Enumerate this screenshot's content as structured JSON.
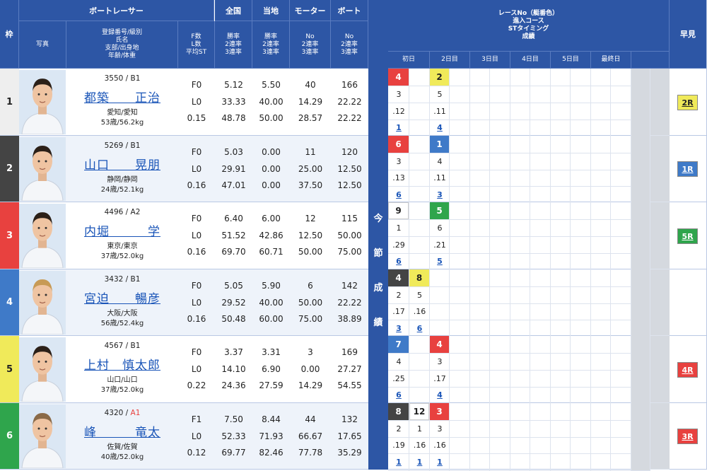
{
  "headers": {
    "waku": "枠",
    "photo": "写真",
    "racer_group": "ボートレーサー",
    "racer_sub": [
      "登録番号/級別",
      "氏名",
      "支部/出身地",
      "年齢/体重"
    ],
    "fl_sub": [
      "F数",
      "L数",
      "平均ST"
    ],
    "zenkoku": "全国",
    "touchi": "当地",
    "motor": "モーター",
    "boat": "ボート",
    "rate_sub": [
      "勝率",
      "2連率",
      "3連率"
    ],
    "no_sub": [
      "No",
      "2連率",
      "3連率"
    ],
    "race_title": [
      "レースNo（艇番色）",
      "進入コース",
      "STタイミング",
      "成績"
    ],
    "days": [
      "初日",
      "2日目",
      "3日目",
      "4日目",
      "5日目",
      "最終日"
    ],
    "early": "早見",
    "side_label": [
      "今",
      "節",
      "成",
      "績"
    ]
  },
  "colors": {
    "header_bg": "#2d56a5",
    "lane1": "#ffffff",
    "lane2": "#444444",
    "lane3": "#e8413f",
    "lane4": "#3f7ac8",
    "lane5": "#f0ea5a",
    "lane6": "#2fa54c"
  },
  "racers": [
    {
      "waku": "1",
      "id_class": "3550 / B1",
      "class_highlight": false,
      "name": "都築　　正治",
      "branch": "愛知/愛知",
      "age_weight": "53歳/56.2kg",
      "f": "F0",
      "l": "L0",
      "st": "0.15",
      "zenkoku": [
        "5.12",
        "33.33",
        "48.78"
      ],
      "touchi": [
        "5.50",
        "40.00",
        "50.00"
      ],
      "motor": [
        "40",
        "14.29",
        "28.57"
      ],
      "boat": [
        "166",
        "22.22",
        "22.22"
      ],
      "races": [
        {
          "day": 0,
          "race": "4",
          "color": "lane3",
          "course": "3",
          "st": ".12",
          "result": "1"
        },
        {
          "day": 1,
          "race": "2",
          "color": "lane5",
          "course": "5",
          "st": ".11",
          "result": "4"
        }
      ],
      "early": "2R",
      "early_color": "lane5"
    },
    {
      "waku": "2",
      "id_class": "5269 / B1",
      "class_highlight": false,
      "name": "山口　　晃朋",
      "branch": "静岡/静岡",
      "age_weight": "24歳/52.1kg",
      "f": "F0",
      "l": "L0",
      "st": "0.16",
      "zenkoku": [
        "5.03",
        "29.91",
        "47.01"
      ],
      "touchi": [
        "0.00",
        "0.00",
        "0.00"
      ],
      "motor": [
        "11",
        "25.00",
        "37.50"
      ],
      "boat": [
        "120",
        "12.50",
        "12.50"
      ],
      "races": [
        {
          "day": 0,
          "race": "6",
          "color": "lane3",
          "course": "3",
          "st": ".13",
          "result": "6"
        },
        {
          "day": 1,
          "race": "1",
          "color": "lane4",
          "course": "4",
          "st": ".11",
          "result": "3"
        }
      ],
      "early": "1R",
      "early_color": "lane4"
    },
    {
      "waku": "3",
      "id_class": "4496 / A2",
      "class_highlight": false,
      "name": "内堀　　　学",
      "branch": "東京/東京",
      "age_weight": "37歳/52.0kg",
      "f": "F0",
      "l": "L0",
      "st": "0.16",
      "zenkoku": [
        "6.40",
        "51.52",
        "69.70"
      ],
      "touchi": [
        "6.00",
        "42.86",
        "60.71"
      ],
      "motor": [
        "12",
        "12.50",
        "50.00"
      ],
      "boat": [
        "115",
        "50.00",
        "75.00"
      ],
      "races": [
        {
          "day": 0,
          "race": "9",
          "color": "lane1",
          "course": "1",
          "st": ".29",
          "result": "6"
        },
        {
          "day": 1,
          "race": "5",
          "color": "lane6",
          "course": "6",
          "st": ".21",
          "result": "5"
        }
      ],
      "early": "5R",
      "early_color": "lane6"
    },
    {
      "waku": "4",
      "id_class": "3432 / B1",
      "class_highlight": false,
      "name": "宮迫　　暢彦",
      "branch": "大阪/大阪",
      "age_weight": "56歳/52.4kg",
      "f": "F0",
      "l": "L0",
      "st": "0.16",
      "zenkoku": [
        "5.05",
        "29.52",
        "50.48"
      ],
      "touchi": [
        "5.90",
        "40.00",
        "60.00"
      ],
      "motor": [
        "6",
        "50.00",
        "75.00"
      ],
      "boat": [
        "142",
        "22.22",
        "38.89"
      ],
      "races": [
        {
          "day": 0,
          "race": "4",
          "color": "lane2",
          "course": "2",
          "st": ".17",
          "result": "3"
        },
        {
          "day": 0.5,
          "race": "8",
          "color": "lane5",
          "course": "5",
          "st": ".16",
          "result": "6"
        }
      ],
      "early": "",
      "early_color": ""
    },
    {
      "waku": "5",
      "id_class": "4567 / B1",
      "class_highlight": false,
      "name": "上村　慎太郎",
      "branch": "山口/山口",
      "age_weight": "37歳/52.0kg",
      "f": "F0",
      "l": "L0",
      "st": "0.22",
      "zenkoku": [
        "3.37",
        "14.10",
        "24.36"
      ],
      "touchi": [
        "3.31",
        "6.90",
        "27.59"
      ],
      "motor": [
        "3",
        "0.00",
        "14.29"
      ],
      "boat": [
        "169",
        "27.27",
        "54.55"
      ],
      "races": [
        {
          "day": 0,
          "race": "7",
          "color": "lane4",
          "course": "4",
          "st": ".25",
          "result": "6"
        },
        {
          "day": 1,
          "race": "4",
          "color": "lane3",
          "course": "3",
          "st": ".17",
          "result": "4"
        }
      ],
      "early": "4R",
      "early_color": "lane3"
    },
    {
      "waku": "6",
      "id_class": "4320 / ",
      "class_label": "A1",
      "class_highlight": true,
      "name": "峰　　　竜太",
      "branch": "佐賀/佐賀",
      "age_weight": "40歳/52.0kg",
      "f": "F1",
      "l": "L0",
      "st": "0.12",
      "zenkoku": [
        "7.50",
        "52.33",
        "69.77"
      ],
      "touchi": [
        "8.44",
        "71.93",
        "82.46"
      ],
      "motor": [
        "44",
        "66.67",
        "77.78"
      ],
      "boat": [
        "132",
        "17.65",
        "35.29"
      ],
      "races": [
        {
          "day": 0,
          "race": "8",
          "color": "lane2",
          "course": "2",
          "st": ".19",
          "result": "1"
        },
        {
          "day": 0.5,
          "race": "12",
          "color": "lane1",
          "course": "1",
          "st": ".16",
          "result": "1"
        },
        {
          "day": 1,
          "race": "3",
          "color": "lane3",
          "course": "3",
          "st": ".16",
          "result": "1"
        }
      ],
      "early": "3R",
      "early_color": "lane3"
    }
  ]
}
